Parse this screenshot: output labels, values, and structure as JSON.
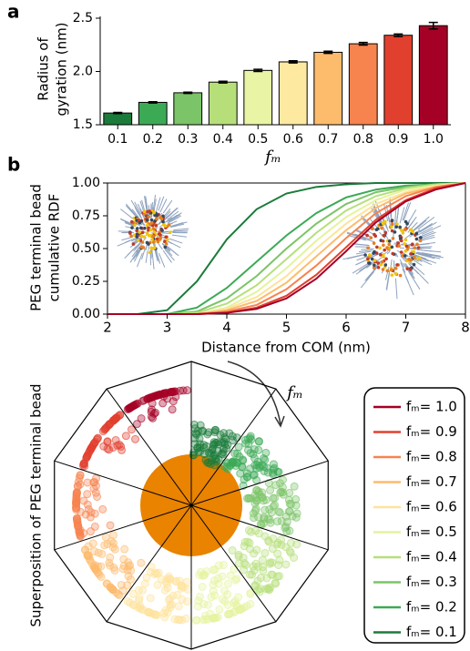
{
  "chart_data": [
    {
      "type": "bar",
      "panel_label": "a",
      "y_label": [
        "Radius of",
        "gyration (nm)"
      ],
      "x_label": "fₘ",
      "categories": [
        "0.1",
        "0.2",
        "0.3",
        "0.4",
        "0.5",
        "0.6",
        "0.7",
        "0.8",
        "0.9",
        "1.0"
      ],
      "values": [
        1.61,
        1.71,
        1.8,
        1.9,
        2.01,
        2.09,
        2.18,
        2.26,
        2.34,
        2.43
      ],
      "errors": [
        0.005,
        0.006,
        0.006,
        0.008,
        0.01,
        0.01,
        0.01,
        0.012,
        0.012,
        0.03
      ],
      "colors": [
        "#1b7b3a",
        "#3caa55",
        "#7bc467",
        "#b6df7a",
        "#e9f5a5",
        "#fee9a0",
        "#fdbb6c",
        "#f7834f",
        "#e1402e",
        "#a50026"
      ],
      "ylim": [
        1.5,
        2.5
      ],
      "yticks": [
        1.5,
        {
          "value": 2,
          "label": "2.0"
        },
        2.5
      ]
    },
    {
      "type": "line",
      "panel_label": "b",
      "y_label": [
        "PEG terminal bead",
        "cumulative RDF"
      ],
      "x_label": "Distance from COM (nm)",
      "x": [
        2,
        2.5,
        3,
        3.5,
        4,
        4.5,
        5,
        5.5,
        6,
        6.5,
        7,
        7.5,
        8
      ],
      "xlim": [
        2,
        8
      ],
      "xticks": [
        2,
        3,
        4,
        5,
        6,
        7,
        8
      ],
      "ylim": [
        0,
        1
      ],
      "yticks": [
        {
          "value": 0,
          "label": "0.00"
        },
        {
          "value": 0.25,
          "label": "0.25"
        },
        {
          "value": 0.5,
          "label": "0.50"
        },
        {
          "value": 0.75,
          "label": "0.75"
        },
        {
          "value": 1,
          "label": "1.00"
        }
      ],
      "series": [
        {
          "name": "fₘ= 0.1",
          "color": "#1b7b3a",
          "values": [
            0,
            0,
            0.03,
            0.25,
            0.57,
            0.8,
            0.92,
            0.97,
            0.99,
            1,
            1,
            1,
            1
          ]
        },
        {
          "name": "fₘ= 0.2",
          "color": "#3caa55",
          "values": [
            0,
            0,
            0,
            0.05,
            0.2,
            0.4,
            0.6,
            0.77,
            0.89,
            0.95,
            0.98,
            0.99,
            1
          ]
        },
        {
          "name": "fₘ= 0.3",
          "color": "#7bc467",
          "values": [
            0,
            0,
            0,
            0.02,
            0.12,
            0.29,
            0.5,
            0.69,
            0.84,
            0.93,
            0.97,
            0.99,
            1
          ]
        },
        {
          "name": "fₘ= 0.4",
          "color": "#b6df7a",
          "values": [
            0,
            0,
            0,
            0.01,
            0.08,
            0.22,
            0.42,
            0.62,
            0.79,
            0.9,
            0.96,
            0.99,
            1
          ]
        },
        {
          "name": "fₘ= 0.5",
          "color": "#e4f39e",
          "values": [
            0,
            0,
            0,
            0,
            0.05,
            0.17,
            0.35,
            0.56,
            0.74,
            0.87,
            0.95,
            0.98,
            1
          ]
        },
        {
          "name": "fₘ= 0.6",
          "color": "#fee39a",
          "values": [
            0,
            0,
            0,
            0,
            0.04,
            0.13,
            0.29,
            0.5,
            0.69,
            0.84,
            0.93,
            0.98,
            1
          ]
        },
        {
          "name": "fₘ= 0.7",
          "color": "#fdbb6c",
          "values": [
            0,
            0,
            0,
            0,
            0.03,
            0.1,
            0.24,
            0.44,
            0.64,
            0.81,
            0.92,
            0.97,
            1
          ]
        },
        {
          "name": "fₘ= 0.8",
          "color": "#f7834f",
          "values": [
            0,
            0,
            0,
            0,
            0.02,
            0.07,
            0.19,
            0.37,
            0.58,
            0.77,
            0.9,
            0.97,
            1
          ]
        },
        {
          "name": "fₘ= 0.9",
          "color": "#e1402e",
          "values": [
            0,
            0,
            0,
            0,
            0.01,
            0.05,
            0.14,
            0.3,
            0.51,
            0.72,
            0.87,
            0.96,
            1
          ]
        },
        {
          "name": "fₘ= 1.0",
          "color": "#a50026",
          "values": [
            0,
            0,
            0,
            0,
            0.01,
            0.04,
            0.12,
            0.27,
            0.48,
            0.7,
            0.86,
            0.95,
            1
          ]
        }
      ]
    },
    {
      "type": "wheel",
      "y_label": "Superposition of PEG terminal bead",
      "annotation": "fₘ",
      "core_color": "#e98300"
    }
  ]
}
